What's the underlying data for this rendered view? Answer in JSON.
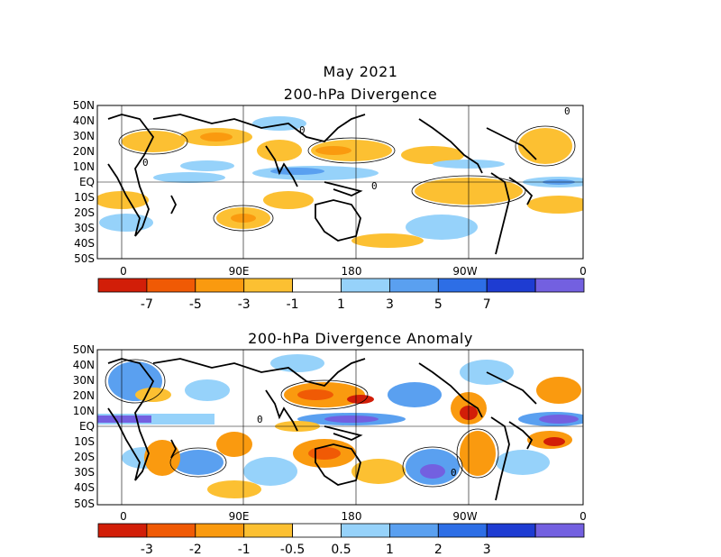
{
  "figure": {
    "month_title": "May 2021"
  },
  "panels": [
    {
      "title": "200-hPa Divergence",
      "lat_labels": [
        "50N",
        "40N",
        "30N",
        "20N",
        "10N",
        "EQ",
        "10S",
        "20S",
        "30S",
        "40S",
        "50S"
      ],
      "lon_labels": [
        "0",
        "90E",
        "180",
        "90W",
        "0"
      ],
      "contour_label": "0",
      "colorbar": {
        "colors": [
          "#d21e08",
          "#f05a05",
          "#fa9a0f",
          "#fcc032",
          "#ffffff",
          "#96d2fa",
          "#5aa0f0",
          "#2d6ee6",
          "#1e3cd2",
          "#7360e0"
        ],
        "tick_labels": [
          "-7",
          "-5",
          "-3",
          "-1",
          "1",
          "3",
          "5",
          "7"
        ]
      }
    },
    {
      "title": "200-hPa Divergence Anomaly",
      "lat_labels": [
        "50N",
        "40N",
        "30N",
        "20N",
        "10N",
        "EQ",
        "10S",
        "20S",
        "30S",
        "40S",
        "50S"
      ],
      "lon_labels": [
        "0",
        "90E",
        "180",
        "90W",
        "0"
      ],
      "contour_label": "0",
      "colorbar": {
        "colors": [
          "#d21e08",
          "#f05a05",
          "#fa9a0f",
          "#fcc032",
          "#ffffff",
          "#96d2fa",
          "#5aa0f0",
          "#2d6ee6",
          "#1e3cd2",
          "#7360e0"
        ],
        "tick_labels": [
          "-3",
          "-2",
          "-1",
          "-0.5",
          "0.5",
          "1",
          "2",
          "3"
        ]
      }
    }
  ]
}
